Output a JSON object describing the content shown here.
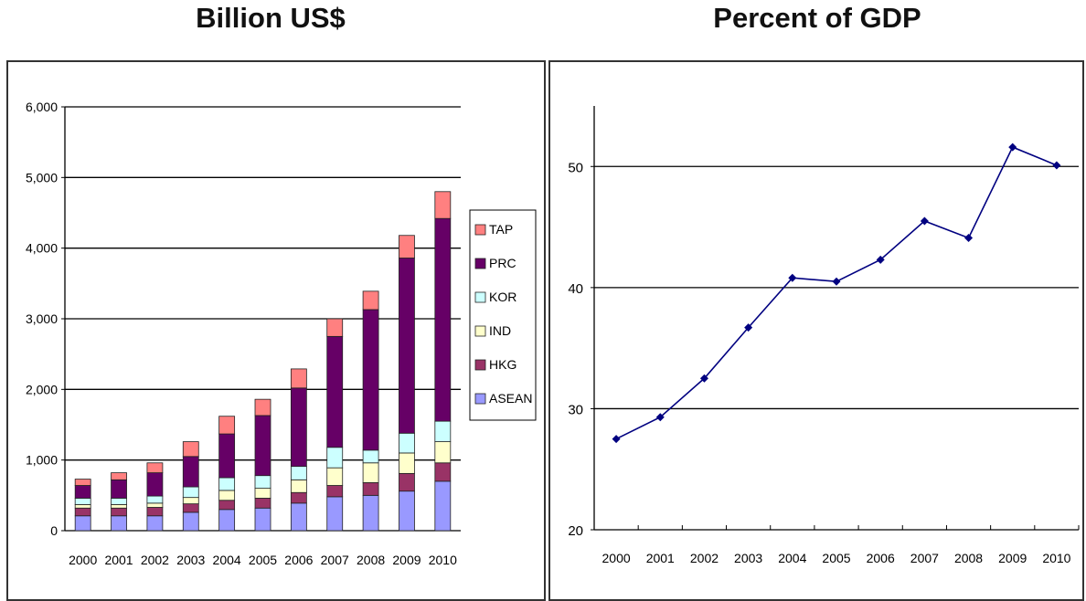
{
  "titles": {
    "left": "Billion US$",
    "right": "Percent of GDP"
  },
  "colors": {
    "ASEAN": "#9999ff",
    "HKG": "#993366",
    "IND": "#ffffcc",
    "KOR": "#ccffff",
    "PRC": "#660066",
    "TAP": "#ff8080",
    "line": "#000080",
    "grid": "#000000"
  },
  "chart_data": [
    {
      "type": "bar",
      "stacked": true,
      "title": "Billion US$",
      "categories": [
        "2000",
        "2001",
        "2002",
        "2003",
        "2004",
        "2005",
        "2006",
        "2007",
        "2008",
        "2009",
        "2010"
      ],
      "ylim": [
        0,
        6000
      ],
      "yticks": [
        0,
        1000,
        2000,
        3000,
        4000,
        5000,
        6000
      ],
      "ytick_labels": [
        "0",
        "1,000",
        "2,000",
        "3,000",
        "4,000",
        "5,000",
        "6,000"
      ],
      "grid": "horizontal",
      "legend_position": "right",
      "series": [
        {
          "name": "ASEAN",
          "values": [
            210,
            210,
            210,
            260,
            300,
            320,
            390,
            480,
            500,
            560,
            700
          ]
        },
        {
          "name": "HKG",
          "values": [
            110,
            110,
            120,
            120,
            130,
            140,
            150,
            160,
            180,
            250,
            260
          ]
        },
        {
          "name": "IND",
          "values": [
            50,
            50,
            60,
            90,
            140,
            140,
            180,
            250,
            280,
            290,
            300
          ]
        },
        {
          "name": "KOR",
          "values": [
            90,
            90,
            100,
            150,
            180,
            180,
            190,
            290,
            180,
            280,
            290
          ]
        },
        {
          "name": "PRC",
          "values": [
            180,
            260,
            330,
            430,
            620,
            850,
            1110,
            1570,
            1990,
            2480,
            2870
          ]
        },
        {
          "name": "TAP",
          "values": [
            90,
            100,
            140,
            210,
            250,
            230,
            270,
            250,
            260,
            320,
            380
          ]
        }
      ]
    },
    {
      "type": "line",
      "title": "Percent of GDP",
      "x": [
        "2000",
        "2001",
        "2002",
        "2003",
        "2004",
        "2005",
        "2006",
        "2007",
        "2008",
        "2009",
        "2010"
      ],
      "ylim": [
        20,
        55
      ],
      "yticks": [
        20,
        30,
        40,
        50
      ],
      "ytick_labels": [
        "20",
        "30",
        "40",
        "50"
      ],
      "grid": "horizontal",
      "series": [
        {
          "values": [
            27.5,
            29.3,
            32.5,
            36.7,
            40.8,
            40.5,
            42.3,
            45.5,
            44.1,
            51.6,
            50.1
          ]
        }
      ]
    }
  ]
}
